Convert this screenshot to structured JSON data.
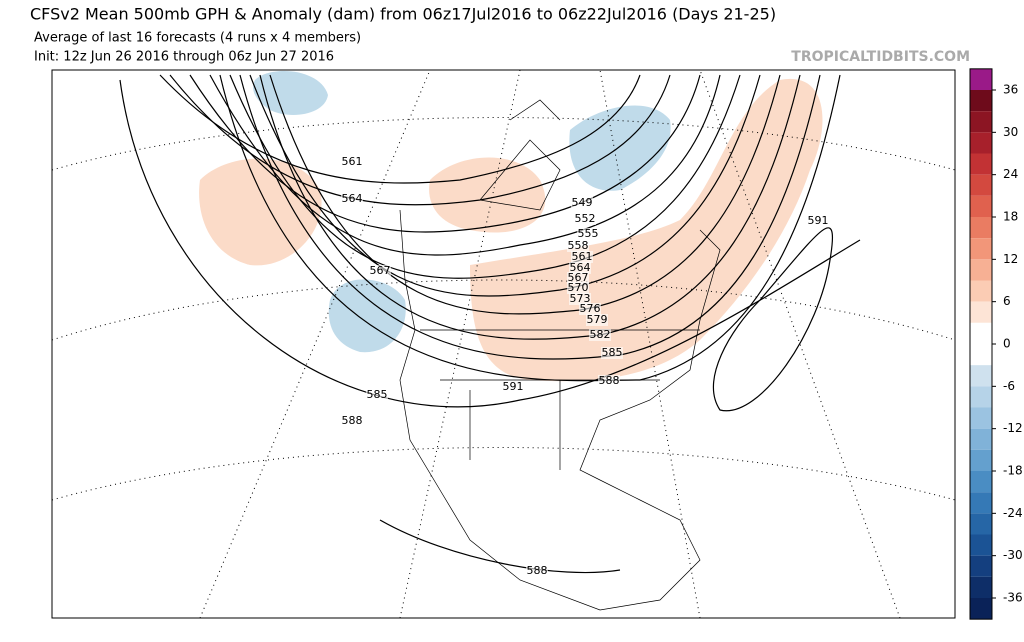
{
  "header": {
    "title": "CFSv2 Mean 500mb GPH & Anomaly (dam) from 06z17Jul2016 to 06z22Jul2016 (Days 21-25)",
    "subtitle": "Average of last 16 forecasts (4 runs x 4 members)",
    "init": "Init: 12z Jun 26 2016 through 06z Jun 27 2016"
  },
  "watermark": "TROPICALTIDBITS.COM",
  "colorbar": {
    "ticks": [
      36,
      30,
      24,
      18,
      12,
      6,
      0,
      -6,
      -12,
      -18,
      -24,
      -30,
      -36
    ]
  },
  "contour_labels": [
    561,
    564,
    567,
    585,
    588,
    591,
    549,
    552,
    555,
    558,
    561,
    564,
    567,
    570,
    573,
    576,
    579,
    582,
    585,
    588,
    591,
    588
  ]
}
